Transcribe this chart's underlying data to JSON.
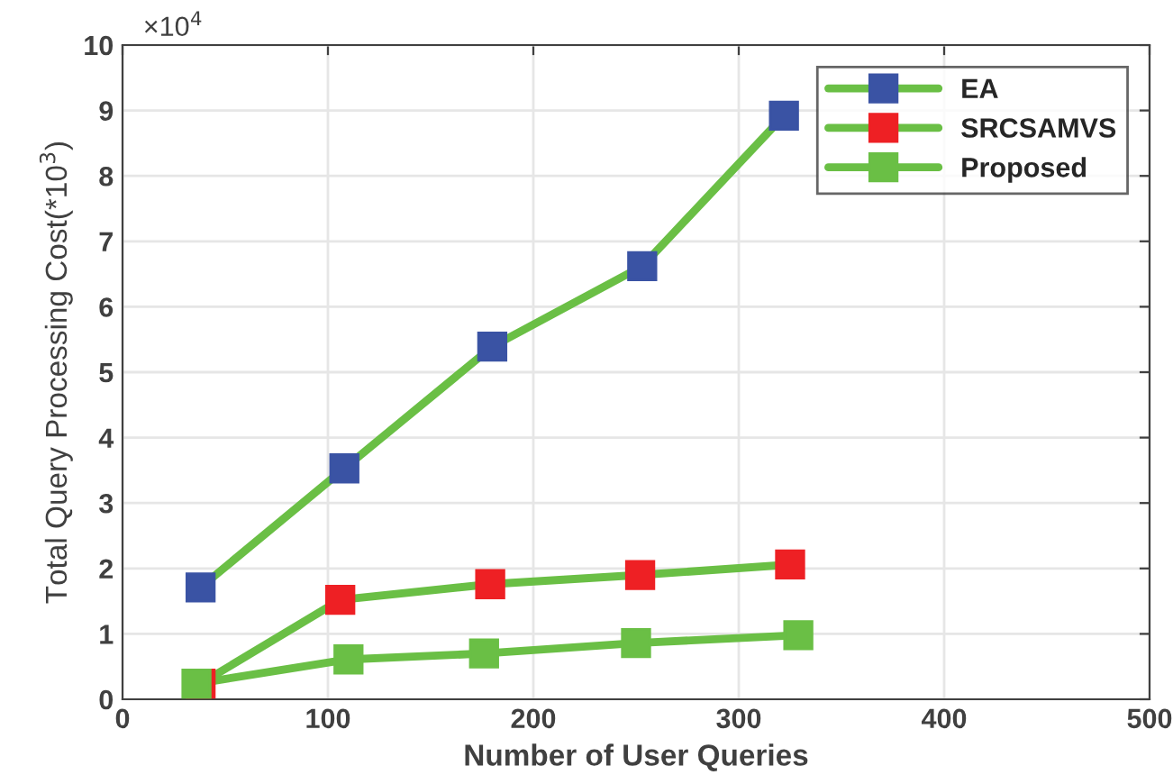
{
  "chart_data": {
    "type": "line",
    "xlabel": "Number of User Queries",
    "ylabel": "Total Query Processing Cost(*10$^{3}$)",
    "annotations": [
      "×10$^{4}$"
    ],
    "xlim": [
      0,
      500
    ],
    "xticks": [
      0,
      100,
      200,
      300,
      400,
      500
    ],
    "ylim": [
      0,
      10
    ],
    "yticks": [
      0,
      1,
      2,
      3,
      4,
      5,
      6,
      7,
      8,
      9,
      10
    ],
    "grid": true,
    "legend": "top right",
    "marker": "square",
    "line_style": "solid",
    "series": [
      {
        "name": "EA",
        "color": "#6abf45",
        "colors": [
          "#3a53a4",
          "#3a53a4",
          "#3a53a4",
          "#3a53a4",
          "#3a53a4"
        ],
        "x": [
          38,
          108,
          180,
          253,
          322
        ],
        "values": [
          1.71,
          3.53,
          5.39,
          6.62,
          8.92
        ]
      },
      {
        "name": "SRCSAMVS",
        "color": "#6abf45",
        "colors": [
          "#ee2024",
          "#ee2024",
          "#ee2024",
          "#ee2024",
          "#ee2024"
        ],
        "x": [
          38,
          106,
          179,
          252,
          325
        ],
        "values": [
          0.24,
          1.52,
          1.76,
          1.9,
          2.06
        ]
      },
      {
        "name": "Proposed",
        "color": "#6abf45",
        "colors": [
          "#6abf45",
          "#6abf45",
          "#6abf45",
          "#6abf45",
          "#6abf45"
        ],
        "x": [
          36,
          110,
          176,
          250,
          329
        ],
        "values": [
          0.24,
          0.61,
          0.7,
          0.86,
          0.98
        ]
      }
    ]
  }
}
